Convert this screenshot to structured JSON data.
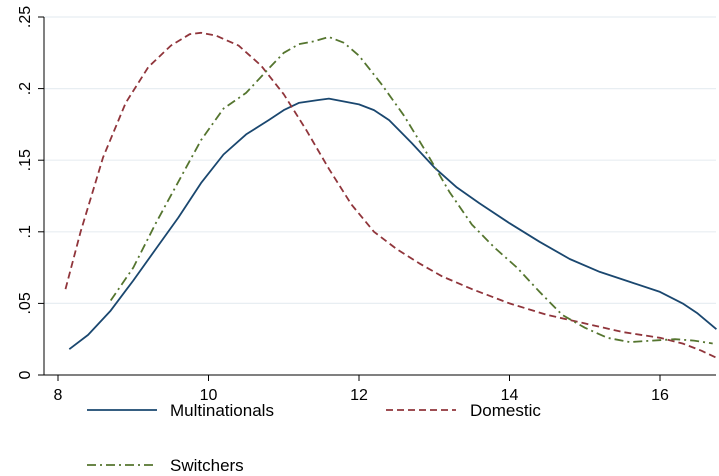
{
  "chart_data": {
    "type": "line",
    "title": "",
    "xlabel": "",
    "ylabel": "",
    "xlim": [
      8.0,
      16.75
    ],
    "ylim": [
      0,
      0.25
    ],
    "x_ticks": [
      {
        "value": 8,
        "label": "8"
      },
      {
        "value": 10,
        "label": "10"
      },
      {
        "value": 12,
        "label": "12"
      },
      {
        "value": 14,
        "label": "14"
      },
      {
        "value": 16,
        "label": "16"
      }
    ],
    "y_ticks": [
      {
        "value": 0,
        "label": "0"
      },
      {
        "value": 0.05,
        "label": ".05"
      },
      {
        "value": 0.1,
        "label": ".1"
      },
      {
        "value": 0.15,
        "label": ".15"
      },
      {
        "value": 0.2,
        "label": ".2"
      },
      {
        "value": 0.25,
        "label": ".25"
      }
    ],
    "grid": "horizontal",
    "legend_position": "bottom",
    "series": [
      {
        "name": "Multinationals",
        "color": "#1a476f",
        "dash": "solid",
        "x": [
          8.15,
          8.4,
          8.7,
          9.0,
          9.3,
          9.6,
          9.9,
          10.2,
          10.5,
          10.8,
          11.0,
          11.2,
          11.45,
          11.6,
          11.8,
          12.0,
          12.2,
          12.4,
          12.7,
          13.0,
          13.3,
          13.6,
          14.0,
          14.4,
          14.8,
          15.2,
          15.6,
          16.0,
          16.3,
          16.5,
          16.75
        ],
        "y": [
          0.018,
          0.028,
          0.045,
          0.066,
          0.088,
          0.11,
          0.134,
          0.154,
          0.168,
          0.178,
          0.185,
          0.19,
          0.192,
          0.193,
          0.191,
          0.189,
          0.185,
          0.178,
          0.162,
          0.145,
          0.131,
          0.12,
          0.106,
          0.093,
          0.081,
          0.072,
          0.065,
          0.058,
          0.05,
          0.043,
          0.032
        ]
      },
      {
        "name": "Domestic",
        "color": "#90353b",
        "dash": "dashed",
        "x": [
          8.1,
          8.3,
          8.6,
          8.9,
          9.2,
          9.5,
          9.75,
          9.9,
          10.1,
          10.4,
          10.7,
          11.0,
          11.3,
          11.6,
          11.9,
          12.2,
          12.5,
          12.8,
          13.1,
          13.5,
          14.0,
          14.5,
          15.0,
          15.5,
          16.0,
          16.3,
          16.55,
          16.75
        ],
        "y": [
          0.06,
          0.1,
          0.152,
          0.19,
          0.215,
          0.23,
          0.238,
          0.239,
          0.237,
          0.23,
          0.216,
          0.196,
          0.171,
          0.144,
          0.119,
          0.1,
          0.088,
          0.078,
          0.069,
          0.06,
          0.05,
          0.042,
          0.036,
          0.03,
          0.026,
          0.022,
          0.017,
          0.012
        ]
      },
      {
        "name": "Switchers",
        "color": "#55752f",
        "dash": "dashdot",
        "x": [
          8.7,
          9.0,
          9.3,
          9.6,
          9.9,
          10.2,
          10.5,
          10.8,
          11.0,
          11.2,
          11.4,
          11.6,
          11.8,
          12.0,
          12.3,
          12.6,
          12.9,
          13.2,
          13.5,
          13.8,
          14.1,
          14.4,
          14.7,
          15.0,
          15.3,
          15.6,
          15.9,
          16.2,
          16.45,
          16.7
        ],
        "y": [
          0.052,
          0.075,
          0.106,
          0.135,
          0.164,
          0.186,
          0.197,
          0.214,
          0.225,
          0.231,
          0.233,
          0.236,
          0.232,
          0.223,
          0.203,
          0.181,
          0.155,
          0.128,
          0.105,
          0.089,
          0.075,
          0.058,
          0.042,
          0.033,
          0.026,
          0.023,
          0.024,
          0.025,
          0.024,
          0.022
        ]
      }
    ]
  }
}
